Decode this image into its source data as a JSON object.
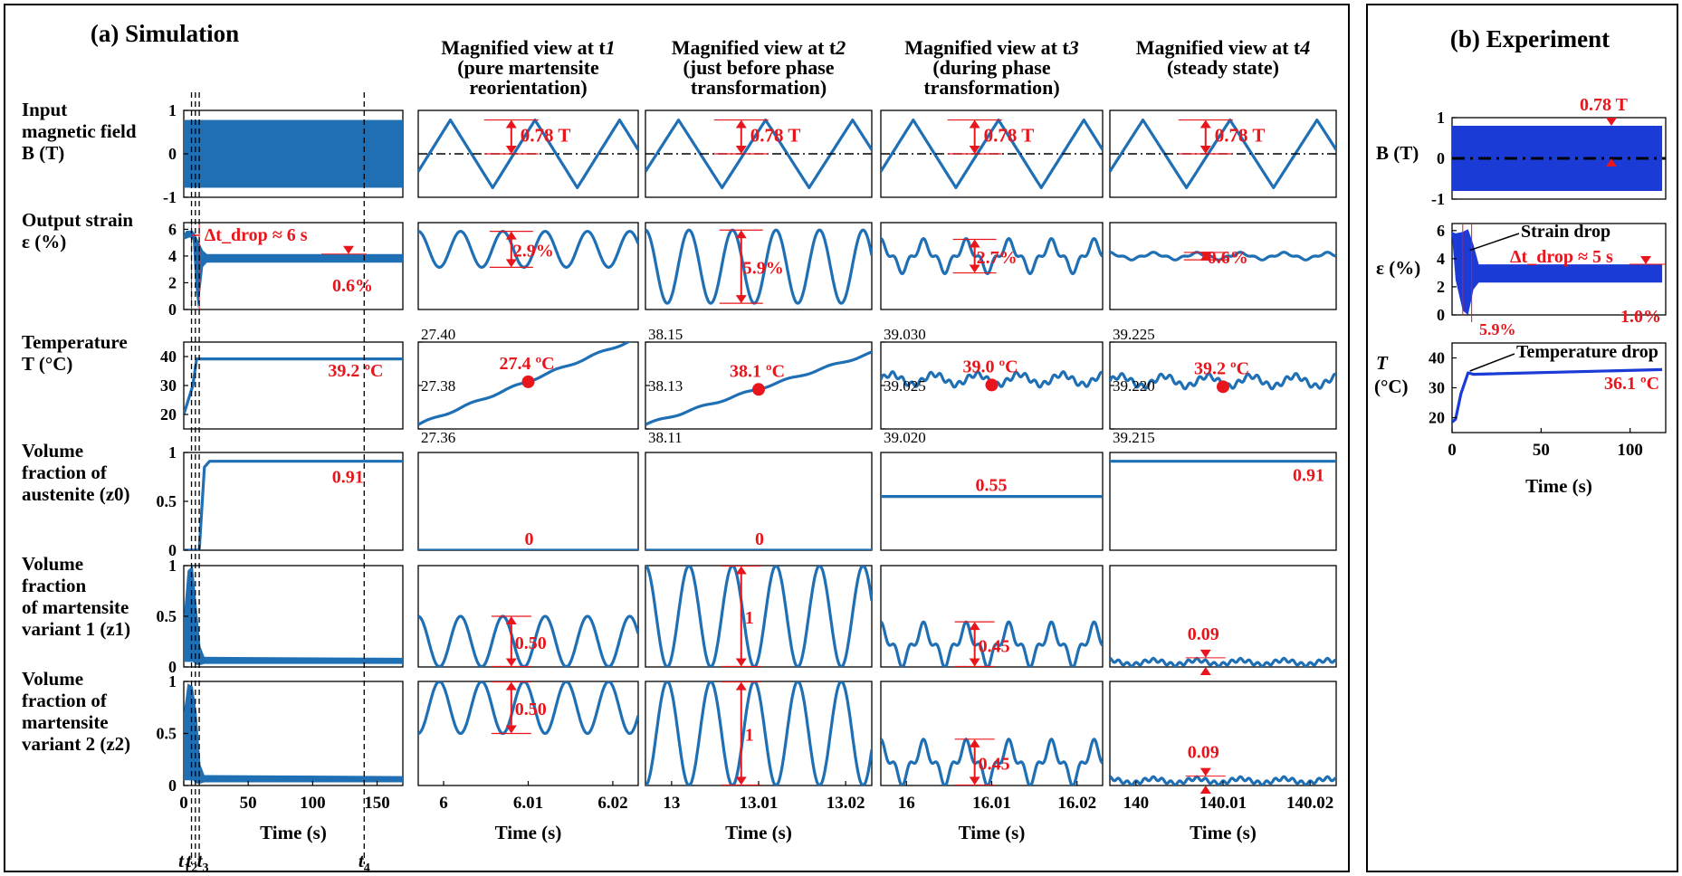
{
  "panel_a": {
    "title": "(a) Simulation",
    "col_titles": [
      [
        "Magnified view at t1",
        "(pure martensite",
        "reorientation)"
      ],
      [
        "Magnified view at t2",
        "(just before phase",
        "transformation)"
      ],
      [
        "Magnified view at t3",
        "(during phase",
        "transformation)"
      ],
      [
        "Magnified view at t4",
        "(steady state)"
      ]
    ],
    "row_labels": [
      [
        "Input",
        "magnetic field",
        "B (T)"
      ],
      [
        "Output strain",
        "ε (%)"
      ],
      [
        "Temperature",
        "T (°C)"
      ],
      [
        "Volume",
        "fraction of",
        "austenite (z0)"
      ],
      [
        "Volume",
        "fraction",
        "of martensite",
        "variant 1 (z1)"
      ],
      [
        "Volume",
        "fraction of",
        "martensite",
        "variant 2 (z2)"
      ]
    ],
    "time_markers": [
      "t1",
      "t2",
      "t3",
      "t4"
    ],
    "xlabel": "Time (s)"
  },
  "panel_b": {
    "title": "(b) Experiment",
    "row_labels": [
      "B (T)",
      "ε (%)",
      "T",
      "(°C)"
    ],
    "xlabel": "Time (s)"
  },
  "chart_data": [
    {
      "type": "line",
      "panel": "a-overview",
      "x_range": [
        0,
        170
      ],
      "x_ticks": [
        0,
        50,
        100,
        150
      ],
      "B": {
        "amplitude": 0.78,
        "ylim": [
          -1,
          1
        ],
        "yticks": [
          -1,
          0,
          1
        ]
      },
      "strain": {
        "ylim": [
          0,
          6.5
        ],
        "yticks": [
          0,
          2,
          4,
          6
        ],
        "peak": 5.9,
        "steady_mean": 3.8,
        "steady_amplitude": 0.6,
        "annotations": [
          "Δt_drop ≈ 6 s",
          "0.6%"
        ]
      },
      "temperature": {
        "ylim": [
          15,
          45
        ],
        "yticks": [
          20,
          30,
          40
        ],
        "x": [
          0,
          7,
          10,
          170
        ],
        "y": [
          20,
          30,
          39.2,
          39.2
        ],
        "annotation": "39.2 ºC"
      },
      "z0": {
        "ylim": [
          0,
          1
        ],
        "yticks": [
          0,
          0.5,
          1
        ],
        "x": [
          0,
          12,
          16,
          20,
          170
        ],
        "y": [
          0,
          0,
          0.85,
          0.91,
          0.91
        ],
        "annotation": "0.91"
      },
      "z1": {
        "ylim": [
          0,
          1
        ],
        "yticks": [
          0,
          0.5,
          1
        ],
        "steady": 0.06
      },
      "z2": {
        "ylim": [
          0,
          1
        ],
        "yticks": [
          0,
          0.5,
          1
        ],
        "steady": 0.06
      },
      "markers": {
        "t1": 6,
        "t2": 9,
        "t3": 12,
        "t4": 140
      }
    },
    {
      "type": "line",
      "panel": "a-magnified-t1",
      "x_range": [
        5.997,
        6.023
      ],
      "x_ticks": [
        6,
        6.01,
        6.02
      ],
      "x_tick_labels": [
        "6",
        "6.01",
        "6.02"
      ],
      "B_amplitude": 0.78,
      "strain": {
        "mean": 4.45,
        "amplitude": 1.45,
        "annotation": "2.9%"
      },
      "temperature": {
        "ylim": [
          27.36,
          27.4
        ],
        "yticks": [
          27.36,
          27.38,
          27.4
        ],
        "ytick_labels": [
          "27.36",
          "27.38",
          "27.40"
        ],
        "start": 27.362,
        "end": 27.402,
        "marker": [
          6.01,
          27.375
        ],
        "annotation": "27.4 ºC"
      },
      "z0": {
        "value": 0,
        "annotation": "0"
      },
      "z1": {
        "mean": 0.25,
        "amplitude": 0.25,
        "annotation": "0.50"
      },
      "z2": {
        "mean": 0.75,
        "amplitude": 0.25,
        "annotation": "0.50"
      }
    },
    {
      "type": "line",
      "panel": "a-magnified-t2",
      "x_range": [
        12.997,
        13.023
      ],
      "x_ticks": [
        13,
        13.01,
        13.02
      ],
      "x_tick_labels": [
        "13",
        "13.01",
        "13.02"
      ],
      "B_amplitude": 0.78,
      "strain": {
        "mean": 3.05,
        "amplitude": 2.95,
        "annotation": "5.9%"
      },
      "temperature": {
        "ylim": [
          38.11,
          38.15
        ],
        "yticks": [
          38.11,
          38.13,
          38.15
        ],
        "ytick_labels": [
          "38.11",
          "38.13",
          "38.15"
        ],
        "start": 38.112,
        "end": 38.145,
        "marker": [
          13.01,
          38.126
        ],
        "annotation": "38.1 ºC"
      },
      "z0": {
        "value": 0,
        "annotation": "0"
      },
      "z1": {
        "mean": 0.5,
        "amplitude": 0.5,
        "annotation": "1"
      },
      "z2": {
        "mean": 0.5,
        "amplitude": 0.5,
        "annotation": "1"
      }
    },
    {
      "type": "line",
      "panel": "a-magnified-t3",
      "x_range": [
        15.997,
        16.023
      ],
      "x_ticks": [
        16,
        16.01,
        16.02
      ],
      "x_tick_labels": [
        "16",
        "16.01",
        "16.02"
      ],
      "B_amplitude": 0.78,
      "strain": {
        "mean": 3.9,
        "amplitude": 1.35,
        "annotation": "2.7%"
      },
      "temperature": {
        "ylim": [
          39.02,
          39.03
        ],
        "yticks": [
          39.02,
          39.025,
          39.03
        ],
        "ytick_labels": [
          "39.020",
          "39.025",
          "39.030"
        ],
        "mean": 39.0257,
        "marker": [
          16.01,
          39.0262
        ],
        "annotation": "39.0 ºC"
      },
      "z0": {
        "value": 0.55,
        "annotation": "0.55"
      },
      "z1": {
        "mean": 0.22,
        "amplitude": 0.225,
        "annotation": "0.45"
      },
      "z2": {
        "mean": 0.22,
        "amplitude": 0.225,
        "annotation": "0.45"
      }
    },
    {
      "type": "line",
      "panel": "a-magnified-t4",
      "x_range": [
        139.997,
        140.023
      ],
      "x_ticks": [
        140,
        140.01,
        140.02
      ],
      "x_tick_labels": [
        "140",
        "140.01",
        "140.02"
      ],
      "B_amplitude": 0.78,
      "strain": {
        "mean": 3.9,
        "amplitude": 0.3,
        "annotation": "0.6%"
      },
      "temperature": {
        "ylim": [
          39.215,
          39.225
        ],
        "yticks": [
          39.215,
          39.22,
          39.225
        ],
        "ytick_labels": [
          "39.215",
          "39.220",
          "39.225"
        ],
        "mean": 39.2205,
        "marker": [
          140.01,
          39.2205
        ],
        "annotation": "39.2 ºC"
      },
      "z0": {
        "value": 0.91,
        "annotation": "0.91"
      },
      "z1": {
        "mean": 0.045,
        "amplitude": 0.045,
        "annotation": "0.09"
      },
      "z2": {
        "mean": 0.045,
        "amplitude": 0.045,
        "annotation": "0.09"
      }
    },
    {
      "type": "line",
      "panel": "b-experiment",
      "x_range": [
        0,
        120
      ],
      "x_ticks": [
        0,
        50,
        100
      ],
      "B": {
        "amplitude": 0.78,
        "ylim": [
          -1,
          1
        ],
        "yticks": [
          -1,
          0,
          1
        ],
        "annotation": "0.78 T"
      },
      "strain": {
        "ylim": [
          0,
          6.5
        ],
        "yticks": [
          0,
          2,
          4,
          6
        ],
        "peak": 5.9,
        "steady_mean": 2.9,
        "steady_amplitude": 0.5,
        "annotations": [
          "Strain drop",
          "Δt_drop ≈ 5 s",
          "5.9%",
          "1.0%"
        ]
      },
      "temperature": {
        "ylim": [
          15,
          45
        ],
        "yticks": [
          20,
          30,
          40
        ],
        "x": [
          0,
          2,
          5,
          9,
          12,
          118
        ],
        "y": [
          18.5,
          19.5,
          28,
          35,
          34.5,
          36.1
        ],
        "annotations": [
          "Temperature drop",
          "36.1 ºC"
        ]
      }
    }
  ]
}
